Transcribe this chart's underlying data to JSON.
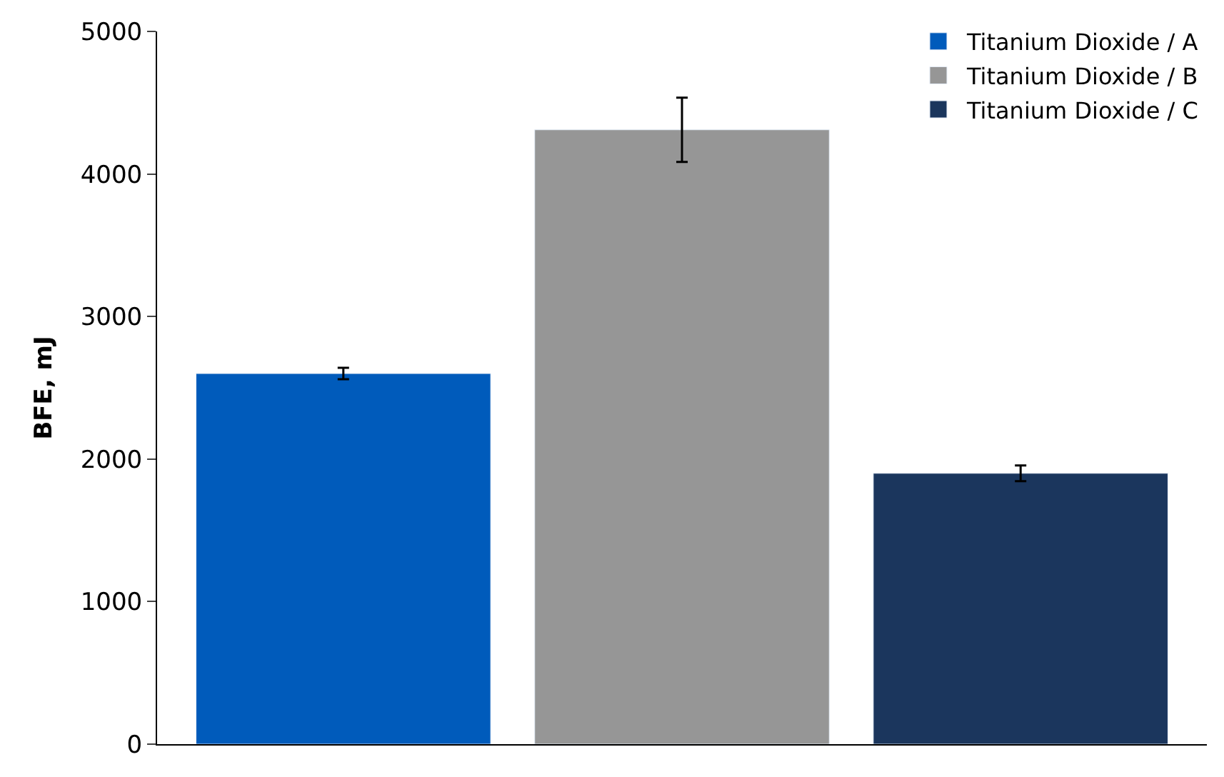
{
  "chart_data": {
    "type": "bar",
    "ylabel": "BFE, mJ",
    "categories": [
      null,
      null,
      null
    ],
    "series": [
      {
        "name": "Titanium Dioxide / A",
        "color": "#005bbb",
        "values": [
          2600,
          null,
          null
        ],
        "errors": [
          40,
          null,
          null
        ]
      },
      {
        "name": "Titanium Dioxide / B",
        "color": "#969696",
        "values": [
          null,
          4310,
          null
        ],
        "errors": [
          null,
          225,
          null
        ]
      },
      {
        "name": "Titanium Dioxide / C",
        "color": "#1b365d",
        "values": [
          null,
          null,
          1900
        ],
        "errors": [
          null,
          null,
          55
        ]
      }
    ],
    "ylim": [
      0,
      5000
    ],
    "yticks": [
      0,
      1000,
      2000,
      3000,
      4000,
      5000
    ],
    "legend": "top right"
  }
}
